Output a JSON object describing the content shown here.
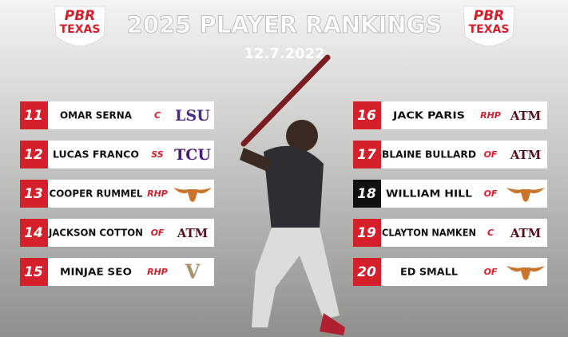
{
  "header": {
    "title": "2025 PLAYER RANKINGS",
    "date": "12.7.2022",
    "logos": [
      {
        "top": "PBR",
        "bottom": "TEXAS"
      },
      {
        "top": "PBR",
        "bottom": "TEXAS"
      }
    ]
  },
  "rankings": [
    [
      {
        "rank": "11",
        "name": "OMAR SERNA",
        "position": "C",
        "logo": "LSU"
      },
      {
        "rank": "12",
        "name": "LUCAS FRANCO",
        "position": "SS",
        "logo": "TCU"
      },
      {
        "rank": "13",
        "name": "COOPER RUMMEL",
        "position": "RHP"
      },
      {
        "rank": "14",
        "name": "JACKSON COTTON",
        "position": "OF",
        "logo": "ATM"
      },
      {
        "rank": "15",
        "name": "MINJAE SEO",
        "position": "RHP",
        "logo": "V"
      }
    ],
    [
      {
        "rank": "16",
        "name": "JACK PARIS",
        "position": "RHP",
        "logo": "ATM"
      },
      {
        "rank": "17",
        "name": "BLAINE BULLARD",
        "position": "OF",
        "logo": "ATM"
      },
      {
        "rank": "18",
        "name": "WILLIAM HILL",
        "position": "OF",
        "highlight": true
      },
      {
        "rank": "19",
        "name": "CLAYTON NAMKEN",
        "position": "C",
        "logo": "ATM"
      },
      {
        "rank": "20",
        "name": "ED SMALL",
        "position": "OF"
      }
    ]
  ]
}
